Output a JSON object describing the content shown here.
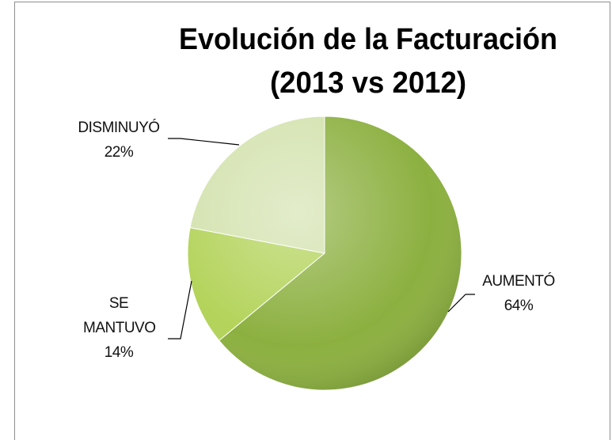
{
  "chart_data": {
    "type": "pie",
    "title": [
      "Evolución de la Facturación",
      "(2013 vs 2012)"
    ],
    "categories": [
      "AUMENTÓ",
      "SE MANTUVO",
      "DISMINUYÓ"
    ],
    "values": [
      64,
      14,
      22
    ],
    "value_labels": [
      "64%",
      "14%",
      "22%"
    ],
    "colors": [
      "#8cb040",
      "#b3d35a",
      "#d3e2ae"
    ]
  }
}
